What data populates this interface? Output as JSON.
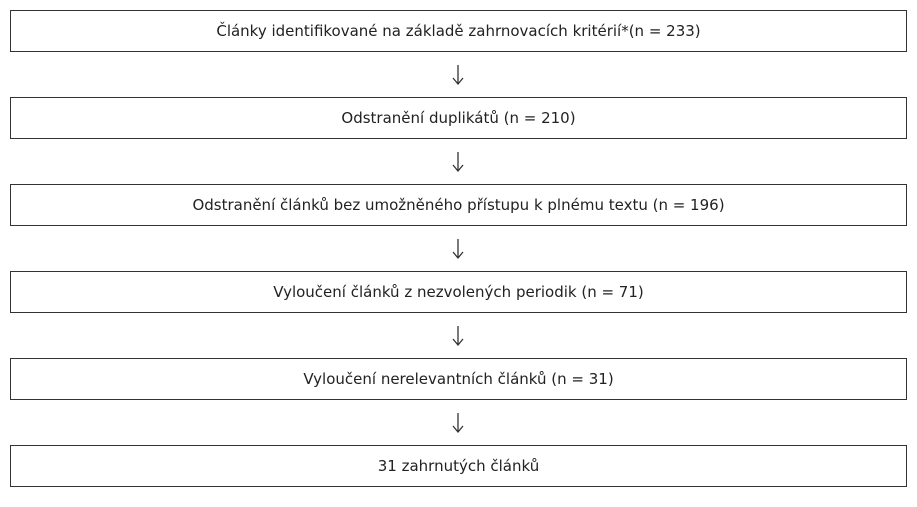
{
  "nodes": [
    {
      "label": "Články identifikované na základě zahrnovacích kritérií*(n = 233)"
    },
    {
      "label": "Odstranění duplikátů (n = 210)"
    },
    {
      "label": "Odstranění článků bez umožněného přístupu k plnému textu (n = 196)"
    },
    {
      "label": "Vyloučení článků z nezvolených periodik (n = 71)"
    },
    {
      "label": "Vyloučení nerelevantních článků (n = 31)"
    },
    {
      "label": "31 zahrnutých článků"
    }
  ]
}
